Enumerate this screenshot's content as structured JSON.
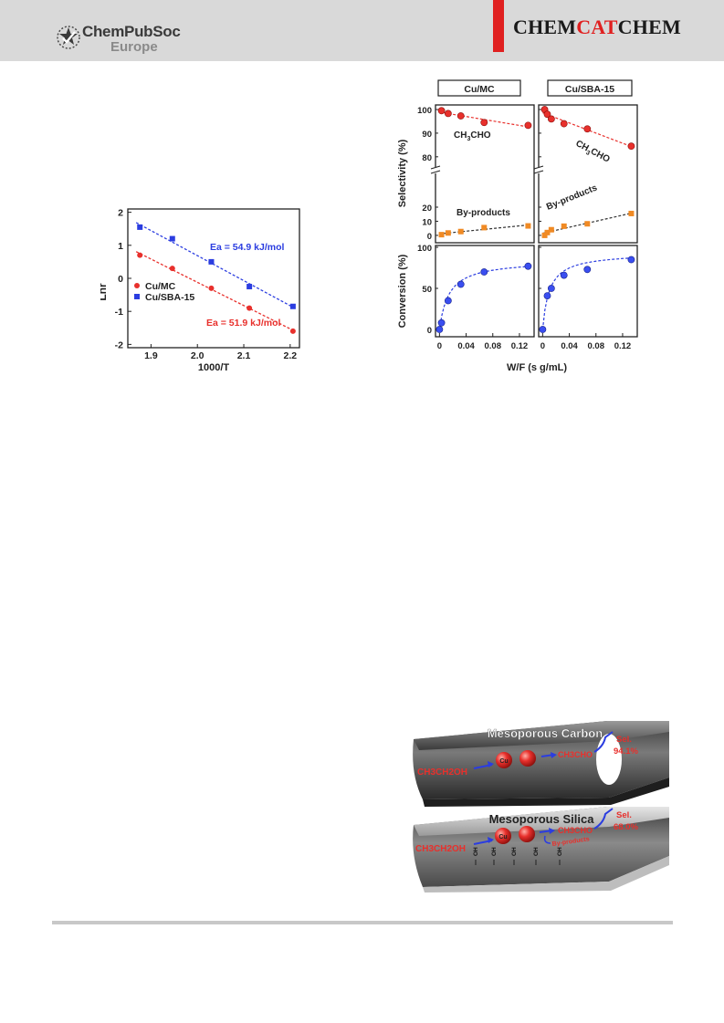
{
  "header": {
    "logo_line1": "ChemPubSoc",
    "logo_line2": "Europe",
    "journal_part1": "CHEM",
    "journal_part2": "CAT",
    "journal_part3": "CHEM",
    "colors": {
      "accent_red": "#e02020",
      "header_gray": "#d9d9d9"
    }
  },
  "arrhenius": {
    "chart_data": {
      "type": "scatter",
      "xlabel": "1000/T",
      "ylabel": "Lnr",
      "xlim": [
        1.85,
        2.22
      ],
      "ylim": [
        -2.1,
        2.1
      ],
      "x_ticks": [
        "1.9",
        "2.0",
        "2.1",
        "2.2"
      ],
      "y_ticks": [
        "2",
        "1",
        "0",
        "-1",
        "-2"
      ],
      "series": [
        {
          "name": "Cu/MC",
          "color": "#e8302c",
          "marker": "circle",
          "x": [
            1.876,
            1.946,
            2.03,
            2.112,
            2.206
          ],
          "y": [
            0.7,
            0.3,
            -0.3,
            -0.9,
            -1.6
          ],
          "fit_label": "Ea = 51.9 kJ/mol"
        },
        {
          "name": "Cu/SBA-15",
          "color": "#2b3de0",
          "marker": "square",
          "x": [
            1.876,
            1.946,
            2.03,
            2.112,
            2.206
          ],
          "y": [
            1.55,
            1.2,
            0.5,
            -0.25,
            -0.85
          ],
          "fit_label": "Ea = 54.9 kJ/mol"
        }
      ]
    }
  },
  "kinetics": {
    "panel_labels": [
      "Cu/MC",
      "Cu/SBA-15"
    ],
    "xlabel": "W/F (s g/mL)",
    "x_ticks": [
      "0",
      "0.04",
      "0.08",
      "0.12"
    ],
    "sel_ylabel": "Selectivity (%)",
    "conv_ylabel": "Conversion (%)",
    "sel_upper_ticks": [
      "100",
      "90",
      "80"
    ],
    "sel_lower_ticks": [
      "20",
      "10",
      "0"
    ],
    "conv_ticks": [
      "100",
      "50",
      "0"
    ],
    "label_main_prefix": "CH",
    "label_main_sub": "3",
    "label_main_suffix": "CHO",
    "label_byproducts": "By-products",
    "chart_data": [
      {
        "type": "scatter",
        "panel": "Cu/MC",
        "xlim": [
          0,
          0.14
        ],
        "series": [
          {
            "name": "CH3CHO",
            "color": "#e8302c",
            "x": [
              0.003,
              0.013,
              0.032,
              0.067,
              0.133
            ],
            "y": [
              99.5,
              98.3,
              97.3,
              94.5,
              93.3
            ]
          },
          {
            "name": "By-products",
            "color": "#f08a24",
            "x": [
              0.003,
              0.013,
              0.032,
              0.067,
              0.133
            ],
            "y": [
              0.5,
              1.7,
              2.7,
              5.5,
              6.7
            ]
          },
          {
            "name": "Conversion",
            "color": "#2b3de0",
            "x": [
              0,
              0.003,
              0.013,
              0.032,
              0.067,
              0.133
            ],
            "y": [
              0,
              8,
              35,
              55,
              70,
              77
            ]
          }
        ]
      },
      {
        "type": "scatter",
        "panel": "Cu/SBA-15",
        "xlim": [
          0,
          0.14
        ],
        "series": [
          {
            "name": "CH3CHO",
            "color": "#e8302c",
            "x": [
              0.003,
              0.007,
              0.013,
              0.032,
              0.067,
              0.133
            ],
            "y": [
              100,
              98,
              96,
              94,
              91.8,
              84.5
            ]
          },
          {
            "name": "By-products",
            "color": "#f08a24",
            "x": [
              0.003,
              0.007,
              0.013,
              0.032,
              0.067,
              0.133
            ],
            "y": [
              0,
              2,
              4,
              6.5,
              8.2,
              15.5
            ]
          },
          {
            "name": "Conversion",
            "color": "#2b3de0",
            "x": [
              0,
              0.007,
              0.013,
              0.032,
              0.067,
              0.133
            ],
            "y": [
              0,
              41,
              50,
              66,
              73,
              85
            ]
          }
        ]
      }
    ]
  },
  "schematic": {
    "carbon_title": "Mesoporous Carbon",
    "silica_title": "Mesoporous Silica",
    "reactant": "CH3CH2OH",
    "cu_label": "Cu",
    "product": "CH3CHO",
    "sel_word": "Sel.",
    "carbon_sel": "94.1%",
    "silica_sel": "68.0%",
    "byproducts": "By-products",
    "oh_label": "OH"
  }
}
